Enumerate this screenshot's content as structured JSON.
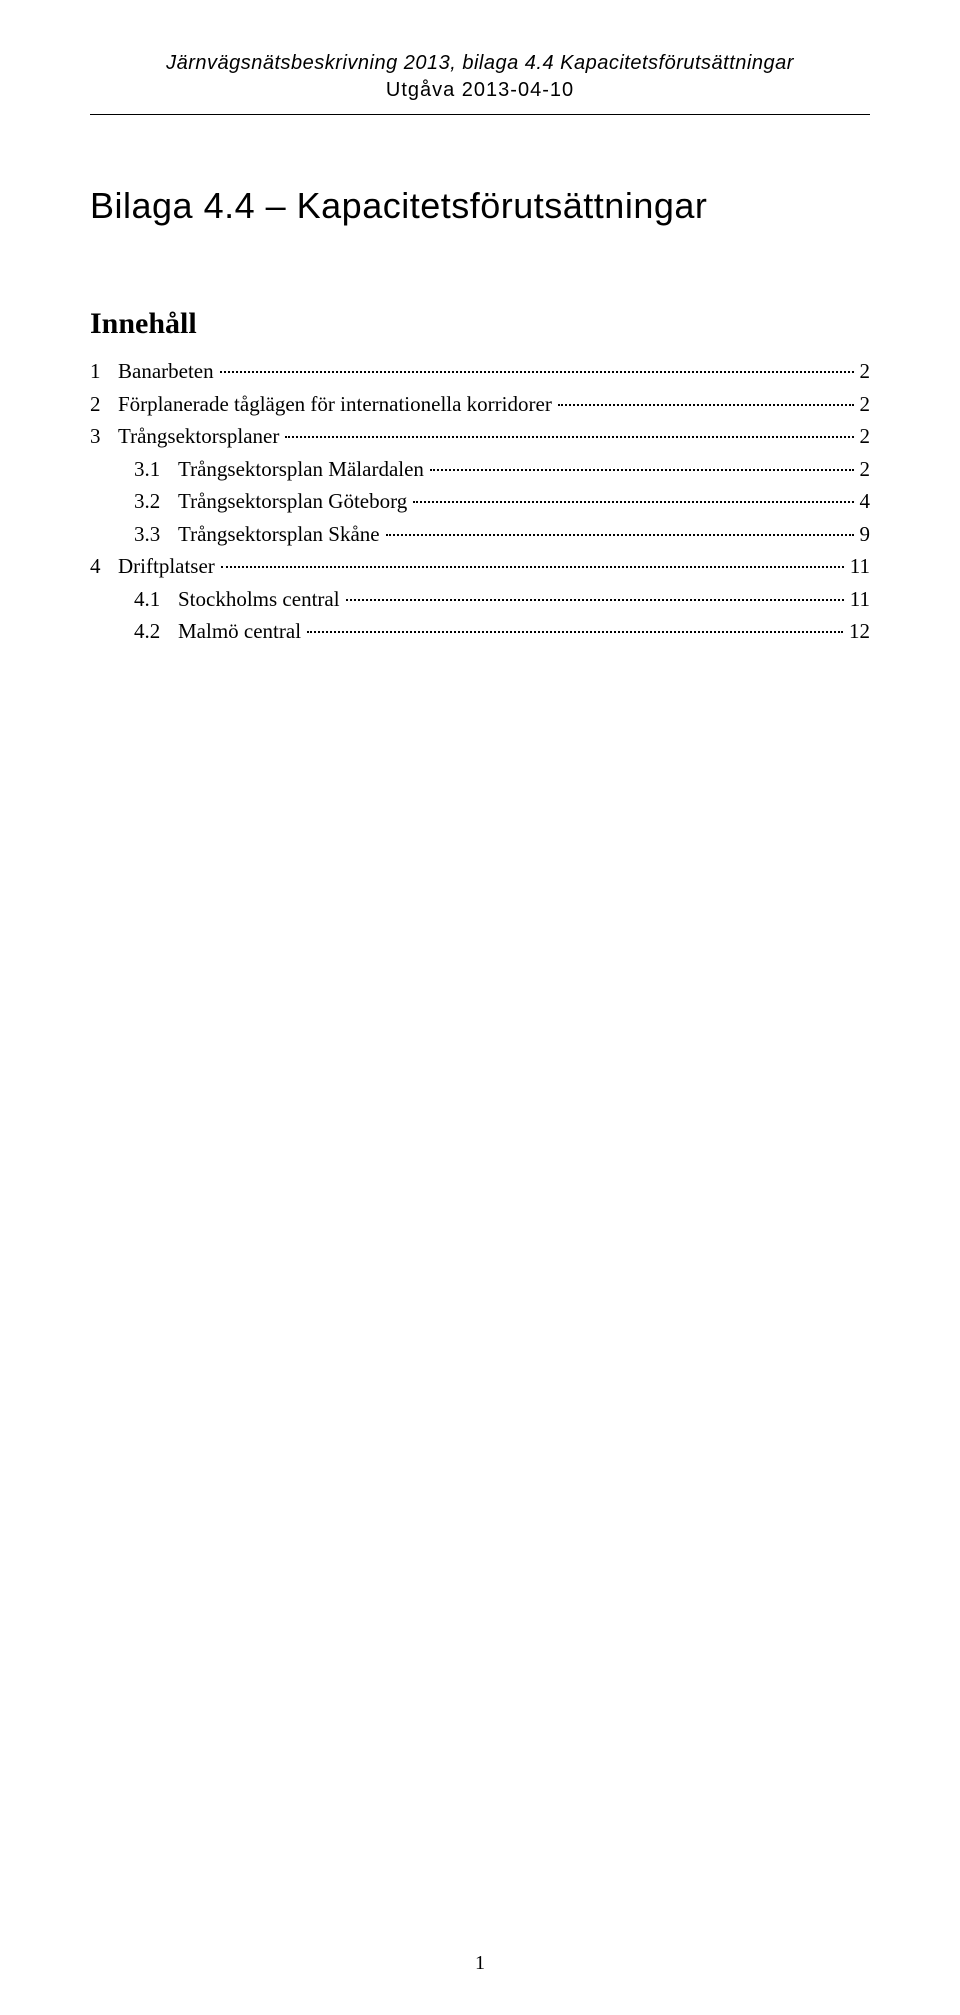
{
  "header": {
    "line1": "Järnvägsnätsbeskrivning 2013, bilaga 4.4 Kapacitetsförutsättningar",
    "line2": "Utgåva 2013-04-10"
  },
  "title": "Bilaga 4.4 – Kapacitetsförutsättningar",
  "toc_title": "Innehåll",
  "toc": [
    {
      "level": 1,
      "num": "1",
      "label": "Banarbeten",
      "page": "2"
    },
    {
      "level": 1,
      "num": "2",
      "label": "Förplanerade tåglägen för internationella korridorer",
      "page": "2"
    },
    {
      "level": 1,
      "num": "3",
      "label": "Trångsektorsplaner",
      "page": "2"
    },
    {
      "level": 2,
      "num": "3.1",
      "label": "Trångsektorsplan Mälardalen",
      "page": "2"
    },
    {
      "level": 2,
      "num": "3.2",
      "label": "Trångsektorsplan Göteborg",
      "page": "4"
    },
    {
      "level": 2,
      "num": "3.3",
      "label": "Trångsektorsplan Skåne",
      "page": "9"
    },
    {
      "level": 1,
      "num": "4",
      "label": "Driftplatser",
      "page": "11"
    },
    {
      "level": 2,
      "num": "4.1",
      "label": "Stockholms central",
      "page": "11"
    },
    {
      "level": 2,
      "num": "4.2",
      "label": "Malmö central",
      "page": "12"
    }
  ],
  "page_number": "1"
}
